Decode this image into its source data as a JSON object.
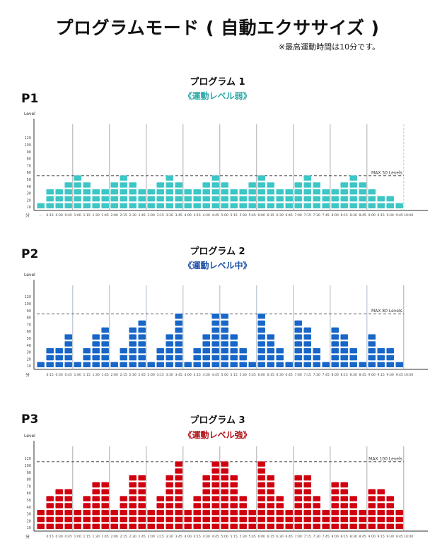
{
  "header": {
    "title": "プログラムモード ( 自動エクササイズ )",
    "note": "※最高運動時間は10分です。"
  },
  "chart_data": [
    {
      "type": "bar",
      "id": "P1",
      "label": "P1",
      "title": "プログラム 1",
      "subtitle": "《運動レベル弱》",
      "color": "#3cc6c6",
      "subtitle_color": "#2aa9a9",
      "ylabel": "Level",
      "xlabel": "分",
      "y_ticks": [
        10,
        20,
        30,
        40,
        50,
        60,
        70,
        80,
        90,
        100,
        120
      ],
      "max_line": 50,
      "max_label": "MAX 50 Levels",
      "categories": [
        "---",
        "0:15",
        "0:30",
        "0:45",
        "1:00",
        "1:15",
        "1:30",
        "1:45",
        "2:00",
        "2:15",
        "2:30",
        "2:45",
        "3:00",
        "3:15",
        "3:30",
        "3:45",
        "4:00",
        "4:15",
        "4:30",
        "4:45",
        "5:00",
        "5:15",
        "5:30",
        "5:45",
        "6:00",
        "6:15",
        "6:30",
        "6:45",
        "7:00",
        "7:15",
        "7:30",
        "7:45",
        "8:00",
        "8:15",
        "8:30",
        "8:45",
        "9:00",
        "9:15",
        "9:30",
        "9:45",
        "10:00"
      ],
      "values": [
        10,
        30,
        30,
        40,
        50,
        40,
        30,
        30,
        40,
        50,
        40,
        30,
        30,
        40,
        50,
        40,
        30,
        30,
        40,
        50,
        40,
        30,
        30,
        40,
        50,
        40,
        30,
        30,
        40,
        50,
        40,
        30,
        30,
        40,
        50,
        40,
        30,
        20,
        20,
        10,
        0
      ]
    },
    {
      "type": "bar",
      "id": "P2",
      "label": "P2",
      "title": "プログラム 2",
      "subtitle": "《運動レベル中》",
      "color": "#1766c8",
      "subtitle_color": "#1c4fa8",
      "ylabel": "Level",
      "xlabel": "分",
      "y_ticks": [
        10,
        20,
        30,
        40,
        50,
        60,
        70,
        80,
        90,
        100,
        120
      ],
      "max_line": 80,
      "max_label": "MAX 80 Levels",
      "categories": [
        "",
        "0:15",
        "0:30",
        "0:45",
        "1:00",
        "1:15",
        "1:30",
        "1:45",
        "2:00",
        "2:15",
        "2:30",
        "2:45",
        "3:00",
        "3:15",
        "3:30",
        "3:45",
        "4:00",
        "4:15",
        "4:30",
        "4:45",
        "5:00",
        "5:15",
        "5:30",
        "5:45",
        "6:00",
        "6:15",
        "6:30",
        "6:45",
        "7:00",
        "7:15",
        "7:30",
        "7:45",
        "8:00",
        "8:15",
        "8:30",
        "8:45",
        "9:00",
        "9:15",
        "9:30",
        "9:45",
        "10:00"
      ],
      "values": [
        10,
        30,
        30,
        50,
        10,
        30,
        50,
        60,
        10,
        30,
        60,
        70,
        10,
        30,
        50,
        80,
        10,
        30,
        50,
        80,
        80,
        50,
        30,
        10,
        80,
        50,
        30,
        10,
        70,
        60,
        30,
        10,
        60,
        50,
        30,
        10,
        50,
        30,
        30,
        10,
        0
      ]
    },
    {
      "type": "bar",
      "id": "P3",
      "label": "P3",
      "title": "プログラム 3",
      "subtitle": "《運動レベル強》",
      "color": "#d0000f",
      "subtitle_color": "#b01018",
      "ylabel": "Level",
      "xlabel": "分",
      "y_ticks": [
        10,
        20,
        30,
        40,
        50,
        60,
        70,
        80,
        90,
        100,
        120
      ],
      "max_line": 100,
      "max_label": "MAX 100 Levels",
      "categories": [
        "",
        "0:15",
        "0:30",
        "0:45",
        "1:00",
        "1:15",
        "1:30",
        "1:45",
        "2:00",
        "2:15",
        "2:30",
        "2:45",
        "3:00",
        "3:15",
        "3:30",
        "3:45",
        "4:00",
        "4:15",
        "4:30",
        "4:45",
        "5:00",
        "5:15",
        "5:30",
        "5:45",
        "6:00",
        "6:15",
        "6:30",
        "6:45",
        "7:00",
        "7:15",
        "7:30",
        "7:45",
        "8:00",
        "8:15",
        "8:30",
        "8:45",
        "9:00",
        "9:15",
        "9:30",
        "9:45",
        "10:00"
      ],
      "values": [
        30,
        50,
        60,
        60,
        30,
        50,
        70,
        70,
        30,
        50,
        80,
        80,
        30,
        50,
        80,
        100,
        30,
        50,
        80,
        100,
        100,
        80,
        50,
        30,
        100,
        80,
        50,
        30,
        80,
        80,
        50,
        30,
        70,
        70,
        50,
        30,
        60,
        60,
        50,
        30,
        0
      ]
    }
  ]
}
